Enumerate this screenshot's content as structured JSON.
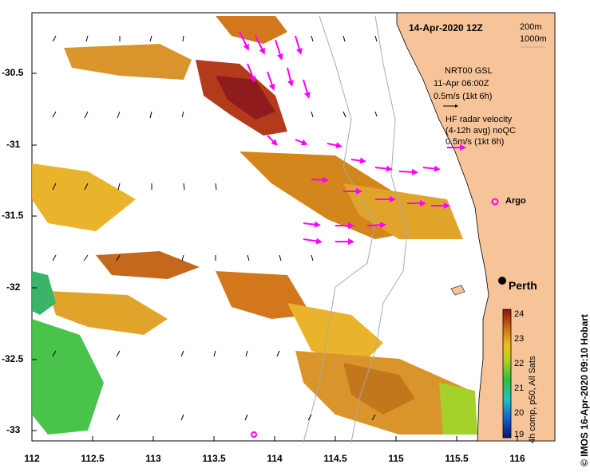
{
  "map": {
    "title": "14-Apr-2020 12Z",
    "depth_legend": [
      "200m",
      "1000m"
    ],
    "gsl_legend": {
      "line1": "NRT00 GSL",
      "line2": "11-Apr 06:00Z",
      "line3": "0.5m/s (1kt 6h)"
    },
    "hf_legend": {
      "line1": "HF radar velocity",
      "line2": "(4-12h avg) noQC",
      "line3": "0.5m/s (1kt 6h)"
    },
    "place_label": "Perth",
    "argo_label": "Argo",
    "credit": "© IMOS 16-Apr-2020 09:10 Hobart",
    "colorbar_caption": "4h comp, p50, All Sats",
    "lat_ticks": [
      "-30.5",
      "-31",
      "-31.5",
      "-32",
      "-32.5",
      "-33"
    ],
    "lon_ticks": [
      "112",
      "112.5",
      "113",
      "113.5",
      "114",
      "114.5",
      "115",
      "115.5",
      "116"
    ],
    "colorbar_ticks": [
      "24",
      "23",
      "22",
      "21",
      "20",
      "19"
    ],
    "colors": {
      "land": "#f7c499",
      "hf_arrow": "#ff00ff",
      "gsl_arrow": "#000000"
    }
  }
}
